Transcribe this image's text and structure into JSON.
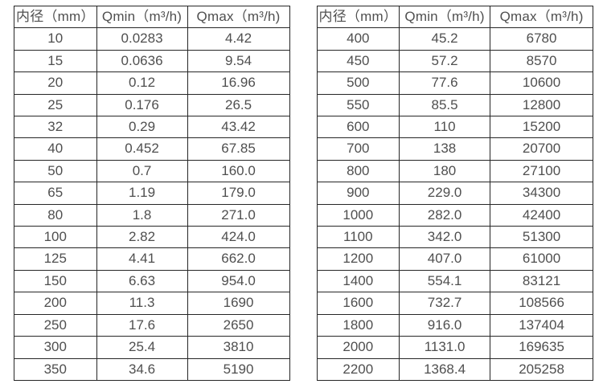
{
  "colors": {
    "background": "#ffffff",
    "border": "#262626",
    "text": "#4f4f4f"
  },
  "tables": [
    {
      "name": "flow-table-small-diameters",
      "headers": [
        "内径（mm）",
        "Qmin（m³/h)",
        "Qmax（m³/h)"
      ],
      "rows": [
        [
          "10",
          "0.0283",
          "4.42"
        ],
        [
          "15",
          "0.0636",
          "9.54"
        ],
        [
          "20",
          "0.12",
          "16.96"
        ],
        [
          "25",
          "0.176",
          "26.5"
        ],
        [
          "32",
          "0.29",
          "43.42"
        ],
        [
          "40",
          "0.452",
          "67.85"
        ],
        [
          "50",
          "0.7",
          "160.0"
        ],
        [
          "65",
          "1.19",
          "179.0"
        ],
        [
          "80",
          "1.8",
          "271.0"
        ],
        [
          "100",
          "2.82",
          "424.0"
        ],
        [
          "125",
          "4.41",
          "662.0"
        ],
        [
          "150",
          "6.63",
          "954.0"
        ],
        [
          "200",
          "11.3",
          "1690"
        ],
        [
          "250",
          "17.6",
          "2650"
        ],
        [
          "300",
          "25.4",
          "3810"
        ],
        [
          "350",
          "34.6",
          "5190"
        ]
      ]
    },
    {
      "name": "flow-table-large-diameters",
      "headers": [
        "内径（mm）",
        "Qmin（m³/h)",
        "Qmax（m³/h)"
      ],
      "rows": [
        [
          "400",
          "45.2",
          "6780"
        ],
        [
          "450",
          "57.2",
          "8570"
        ],
        [
          "500",
          "77.6",
          "10600"
        ],
        [
          "550",
          "85.5",
          "12800"
        ],
        [
          "600",
          "110",
          "15200"
        ],
        [
          "700",
          "138",
          "20700"
        ],
        [
          "800",
          "180",
          "27100"
        ],
        [
          "900",
          "229.0",
          "34300"
        ],
        [
          "1000",
          "282.0",
          "42400"
        ],
        [
          "1100",
          "342.0",
          "51300"
        ],
        [
          "1200",
          "407.0",
          "61000"
        ],
        [
          "1400",
          "554.1",
          "83121"
        ],
        [
          "1600",
          "732.7",
          "108566"
        ],
        [
          "1800",
          "916.0",
          "137404"
        ],
        [
          "2000",
          "1131.0",
          "169635"
        ],
        [
          "2200",
          "1368.4",
          "205258"
        ]
      ]
    }
  ]
}
